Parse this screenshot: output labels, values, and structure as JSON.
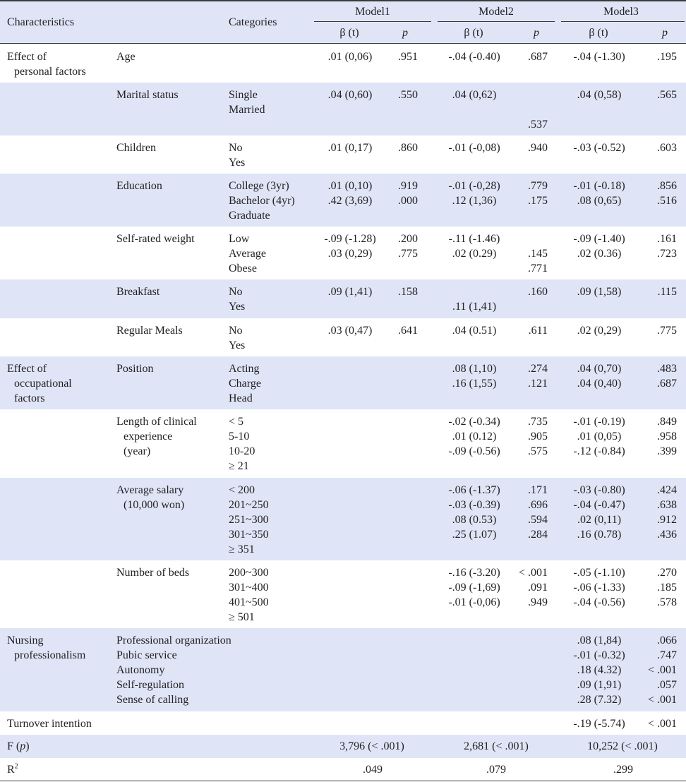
{
  "header": {
    "characteristics": "Characteristics",
    "categories": "Categories",
    "models": [
      "Model1",
      "Model2",
      "Model3"
    ],
    "beta": "β (t)",
    "p": "p"
  },
  "rows": [
    {
      "characteristic": [
        "Effect of",
        "personal factors"
      ],
      "variable": [
        "Age"
      ],
      "categories": [],
      "m1_beta": [
        ".01 (0,06)"
      ],
      "m1_p": [
        ".951"
      ],
      "m2_beta": [
        "-.04 (-0.40)"
      ],
      "m2_p": [
        ".687"
      ],
      "m3_beta": [
        "-.04 (-1.30)"
      ],
      "m3_p": [
        ".195"
      ]
    },
    {
      "characteristic": [],
      "variable": [
        "Marital status"
      ],
      "categories": [
        "Single",
        "Married"
      ],
      "m1_beta": [
        ".04 (0,60)"
      ],
      "m1_p": [
        ".550"
      ],
      "m2_beta": [
        ".04 (0,62)"
      ],
      "m2_p": [
        "",
        "",
        ".537"
      ],
      "m3_beta": [
        ".04 (0,58)"
      ],
      "m3_p": [
        ".565"
      ]
    },
    {
      "characteristic": [],
      "variable": [
        "Children"
      ],
      "categories": [
        "No",
        "Yes"
      ],
      "m1_beta": [
        ".01 (0,17)"
      ],
      "m1_p": [
        ".860"
      ],
      "m2_beta": [
        "-.01 (-0,08)"
      ],
      "m2_p": [
        ".940"
      ],
      "m3_beta": [
        "-.03 (-0.52)"
      ],
      "m3_p": [
        ".603"
      ]
    },
    {
      "characteristic": [],
      "variable": [
        "Education"
      ],
      "categories": [
        "College (3yr)",
        "Bachelor (4yr)",
        "Graduate"
      ],
      "m1_beta": [
        ".01 (0,10)",
        ".42 (3,69)"
      ],
      "m1_p": [
        ".919",
        ".000"
      ],
      "m2_beta": [
        "-.01 (-0,28)",
        ".12 (1,36)"
      ],
      "m2_p": [
        ".779",
        ".175"
      ],
      "m3_beta": [
        "-.01 (-0.18)",
        ".08 (0,65)"
      ],
      "m3_p": [
        ".856",
        ".516"
      ]
    },
    {
      "characteristic": [],
      "variable": [
        "Self-rated weight"
      ],
      "categories": [
        "Low",
        "Average",
        "Obese"
      ],
      "m1_beta": [
        "-.09 (-1.28)",
        ".03 (0,29)"
      ],
      "m1_p": [
        ".200",
        ".775"
      ],
      "m2_beta": [
        "-.11 (-1.46)",
        ".02 (0.29)"
      ],
      "m2_p": [
        "",
        ".145",
        ".771"
      ],
      "m3_beta": [
        "-.09 (-1.40)",
        ".02 (0.36)"
      ],
      "m3_p": [
        ".161",
        ".723"
      ]
    },
    {
      "characteristic": [],
      "variable": [
        "Breakfast"
      ],
      "categories": [
        "No",
        "Yes"
      ],
      "m1_beta": [
        ".09 (1,41)"
      ],
      "m1_p": [
        ".158"
      ],
      "m2_beta": [
        "",
        ".11 (1,41)"
      ],
      "m2_p": [
        ".160"
      ],
      "m3_beta": [
        ".09 (1,58)"
      ],
      "m3_p": [
        ".115"
      ]
    },
    {
      "characteristic": [],
      "variable": [
        "Regular Meals"
      ],
      "categories": [
        "No",
        "Yes"
      ],
      "m1_beta": [
        ".03 (0,47)"
      ],
      "m1_p": [
        ".641"
      ],
      "m2_beta": [
        ".04 (0.51)"
      ],
      "m2_p": [
        ".611"
      ],
      "m3_beta": [
        ".02 (0,29)"
      ],
      "m3_p": [
        ".775"
      ]
    },
    {
      "characteristic": [
        "Effect of",
        "occupational",
        "factors"
      ],
      "variable": [
        "Position"
      ],
      "categories": [
        "Acting",
        "Charge",
        "Head"
      ],
      "m1_beta": [],
      "m1_p": [],
      "m2_beta": [
        ".08 (1,10)",
        ".16 (1,55)"
      ],
      "m2_p": [
        ".274",
        ".121"
      ],
      "m3_beta": [
        ".04 (0,70)",
        ".04 (0,40)"
      ],
      "m3_p": [
        ".483",
        ".687"
      ]
    },
    {
      "characteristic": [],
      "variable": [
        "Length of clinical",
        "experience",
        "(year)"
      ],
      "categories": [
        "< 5",
        "5-10",
        "10-20",
        "≥ 21"
      ],
      "m1_beta": [],
      "m1_p": [],
      "m2_beta": [
        "-.02 (-0.34)",
        ".01 (0.12)",
        "-.09 (-0.56)"
      ],
      "m2_p": [
        ".735",
        ".905",
        ".575"
      ],
      "m3_beta": [
        "-.01 (-0.19)",
        ".01 (0,05)",
        "-.12 (-0.84)"
      ],
      "m3_p": [
        ".849",
        ".958",
        ".399"
      ]
    },
    {
      "characteristic": [],
      "variable": [
        "Average salary",
        "(10,000 won)"
      ],
      "categories": [
        "< 200",
        "201~250",
        "251~300",
        "301~350",
        "≥ 351"
      ],
      "m1_beta": [],
      "m1_p": [],
      "m2_beta": [
        "-.06 (-1.37)",
        "-.03 (-0.39)",
        ".08 (0.53)",
        ".25 (1.07)"
      ],
      "m2_p": [
        ".171",
        ".696",
        ".594",
        ".284"
      ],
      "m3_beta": [
        "-.03 (-0.80)",
        "-.04 (-0.47)",
        ".02 (0,11)",
        ".16 (0.78)"
      ],
      "m3_p": [
        ".424",
        ".638",
        ".912",
        ".436"
      ]
    },
    {
      "characteristic": [],
      "variable": [
        "Number of beds"
      ],
      "categories": [
        "200~300",
        "301~400",
        "401~500",
        "≥ 501"
      ],
      "m1_beta": [],
      "m1_p": [],
      "m2_beta": [
        "-.16 (-3.20)",
        "-.09 (-1,69)",
        "-.01 (-0,06)"
      ],
      "m2_p": [
        "< .001",
        ".091",
        ".949"
      ],
      "m3_beta": [
        "-.05 (-1.10)",
        "-.06 (-1.33)",
        "-.04 (-0.56)"
      ],
      "m3_p": [
        ".270",
        ".185",
        ".578"
      ]
    },
    {
      "characteristic": [
        "Nursing",
        "professionalism"
      ],
      "variable": [
        "Professional organization",
        "Pubic service",
        "Autonomy",
        "Self-regulation",
        "Sense of calling"
      ],
      "categories": [],
      "m1_beta": [],
      "m1_p": [],
      "m2_beta": [],
      "m2_p": [],
      "m3_beta": [
        ".08 (1,84)",
        "-.01 (-0.32)",
        ".18 (4.32)",
        ".09 (1,91)",
        ".28 (7.32)"
      ],
      "m3_p": [
        ".066",
        ".747",
        "< .001",
        ".057",
        "< .001"
      ]
    },
    {
      "characteristic": [
        "Turnover intention"
      ],
      "variable": [],
      "categories": [],
      "m1_beta": [],
      "m1_p": [],
      "m2_beta": [],
      "m2_p": [],
      "m3_beta": [
        "-.19 (-5.74)"
      ],
      "m3_p": [
        "< .001"
      ]
    }
  ],
  "f_row": {
    "label": "F (p)",
    "values": [
      "3,796 (< .001)",
      "2,681 (< .001)",
      "10,252 (< .001)"
    ]
  },
  "r2_row": {
    "label": "R2",
    "values": [
      ".049",
      ".079",
      ".299"
    ]
  }
}
